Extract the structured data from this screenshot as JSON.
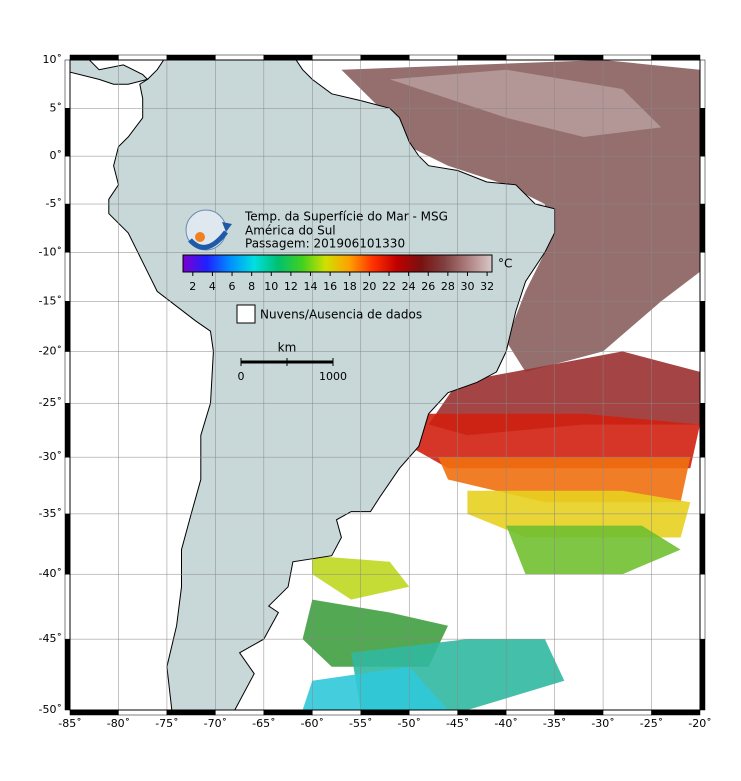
{
  "map": {
    "title_lines": [
      "Temp. da Superfície do Mar - MSG",
      "América do Sul",
      "Passagem: 201906101330"
    ],
    "lon_ticks": [
      {
        "value": -85,
        "label": "-85˚"
      },
      {
        "value": -80,
        "label": "-80˚"
      },
      {
        "value": -75,
        "label": "-75˚"
      },
      {
        "value": -70,
        "label": "-70˚"
      },
      {
        "value": -65,
        "label": "-65˚"
      },
      {
        "value": -60,
        "label": "-60˚"
      },
      {
        "value": -55,
        "label": "-55˚"
      },
      {
        "value": -50,
        "label": "-50˚"
      },
      {
        "value": -45,
        "label": "-45˚"
      },
      {
        "value": -40,
        "label": "-40˚"
      },
      {
        "value": -35,
        "label": "-35˚"
      },
      {
        "value": -30,
        "label": "-30˚"
      },
      {
        "value": -25,
        "label": "-25˚"
      },
      {
        "value": -20,
        "label": "-20˚"
      }
    ],
    "lat_ticks": [
      {
        "value": 10,
        "label": "10˚"
      },
      {
        "value": 5,
        "label": "5˚"
      },
      {
        "value": 0,
        "label": "0˚"
      },
      {
        "value": -5,
        "label": "-5˚"
      },
      {
        "value": -10,
        "label": "-10˚"
      },
      {
        "value": -15,
        "label": "-15˚"
      },
      {
        "value": -20,
        "label": "-20˚"
      },
      {
        "value": -25,
        "label": "-25˚"
      },
      {
        "value": -30,
        "label": "-30˚"
      },
      {
        "value": -35,
        "label": "-35˚"
      },
      {
        "value": -40,
        "label": "-40˚"
      },
      {
        "value": -45,
        "label": "-45˚"
      },
      {
        "value": -50,
        "label": "-50˚"
      }
    ],
    "colorbar": {
      "range": [
        1,
        32.5
      ],
      "ticks": [
        2,
        4,
        6,
        8,
        10,
        12,
        14,
        16,
        18,
        20,
        22,
        24,
        26,
        28,
        30,
        32
      ],
      "unit": "°C",
      "colors": [
        "#7a00d0",
        "#2020ff",
        "#0090ff",
        "#00e0e0",
        "#00c070",
        "#40d020",
        "#d0e000",
        "#ffa000",
        "#ff3000",
        "#c00000",
        "#7a1010",
        "#804040",
        "#b08080",
        "#d8c8c8"
      ]
    },
    "legend": "Nuvens/Ausencia de dados",
    "scale_bar": {
      "unit": "km",
      "labels": [
        "0",
        "1000"
      ]
    }
  }
}
